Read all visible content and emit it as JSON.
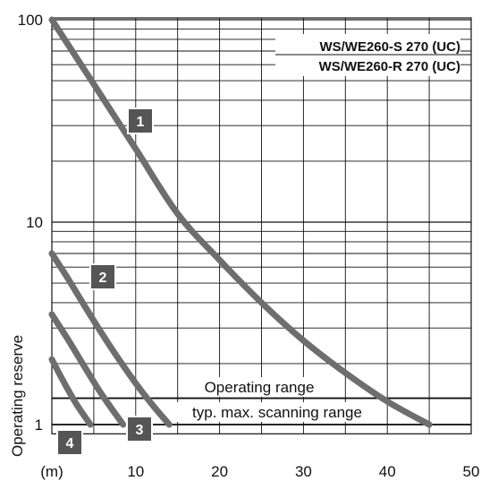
{
  "chart_data": {
    "type": "line",
    "ylabel": "Operating reserve",
    "x_unit_label": "(m)",
    "x_ticks": [
      "10",
      "20",
      "30",
      "40",
      "50"
    ],
    "y_ticks": [
      "1",
      "10",
      "100"
    ],
    "xlim": [
      0,
      50
    ],
    "ylim": [
      0.9,
      100
    ],
    "y_scale": "log",
    "grid": true,
    "legend": [
      "WS/WE260-S 270 (UC)",
      "WS/WE260-R 270 (UC)"
    ],
    "legend_position": "top-right",
    "annotations": {
      "operating_range": "Operating range",
      "scanning_range": "typ. max. scanning range"
    },
    "reference_lines_y": [
      1.0,
      1.35
    ],
    "series": [
      {
        "label": "1",
        "x": [
          0,
          5,
          10,
          15,
          20,
          25,
          30,
          35,
          40,
          45
        ],
        "y": [
          100,
          48,
          23,
          11,
          6.5,
          4.0,
          2.6,
          1.8,
          1.3,
          1.0
        ]
      },
      {
        "label": "2",
        "x": [
          0,
          2,
          4,
          6,
          8,
          10,
          12,
          14
        ],
        "y": [
          7,
          5.2,
          3.8,
          2.8,
          2.1,
          1.6,
          1.25,
          1.0
        ]
      },
      {
        "label": "3",
        "x": [
          0,
          2,
          4,
          6,
          8.5
        ],
        "y": [
          3.5,
          2.6,
          1.9,
          1.4,
          1.0
        ]
      },
      {
        "label": "4",
        "x": [
          0,
          1.5,
          3,
          4.6
        ],
        "y": [
          2.1,
          1.6,
          1.25,
          1.0
        ]
      }
    ],
    "colors": {
      "curve": "#6e6e6e",
      "badge": "#555555",
      "grid": "#111111"
    }
  }
}
